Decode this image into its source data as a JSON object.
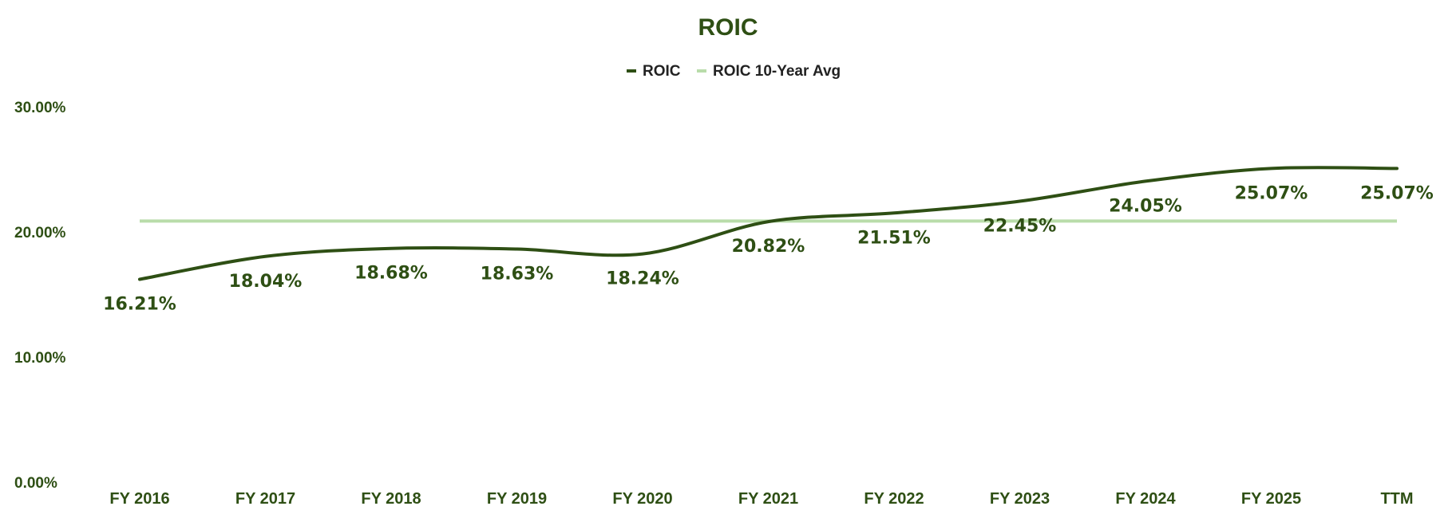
{
  "chart_data": {
    "type": "line",
    "title": "ROIC",
    "categories": [
      "FY 2016",
      "FY 2017",
      "FY 2018",
      "FY 2019",
      "FY 2020",
      "FY 2021",
      "FY 2022",
      "FY 2023",
      "FY 2024",
      "FY 2025",
      "TTM"
    ],
    "series": [
      {
        "name": "ROIC",
        "color": "#2e4f14",
        "values": [
          16.21,
          18.04,
          18.68,
          18.63,
          18.24,
          20.82,
          21.51,
          22.45,
          24.05,
          25.07,
          25.07
        ],
        "labels": [
          "16.21%",
          "18.04%",
          "18.68%",
          "18.63%",
          "18.24%",
          "20.82%",
          "21.51%",
          "22.45%",
          "24.05%",
          "25.07%",
          "25.07%"
        ]
      },
      {
        "name": "ROIC 10-Year Avg",
        "color": "#b9dcaa",
        "values": [
          20.87,
          20.87,
          20.87,
          20.87,
          20.87,
          20.87,
          20.87,
          20.87,
          20.87,
          20.87,
          20.87
        ]
      }
    ],
    "ylim": [
      0,
      30
    ],
    "yticks": [
      0,
      10,
      20,
      30
    ],
    "ytick_labels": [
      "0.00%",
      "10.00%",
      "20.00%",
      "30.00%"
    ],
    "legend_position": "top-center",
    "grid": false,
    "xlabel": "",
    "ylabel": ""
  }
}
